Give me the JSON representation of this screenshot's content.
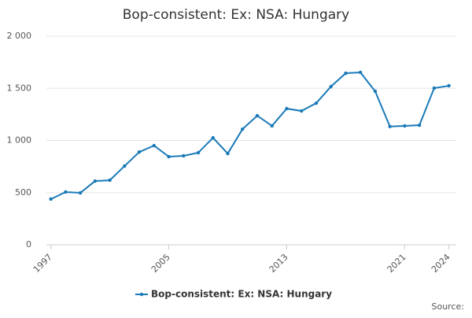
{
  "chart_data": {
    "type": "line",
    "title": "Bop-consistent: Ex: NSA: Hungary",
    "source": "Source:",
    "x": [
      1997,
      1998,
      1999,
      2000,
      2001,
      2002,
      2003,
      2004,
      2005,
      2006,
      2007,
      2008,
      2009,
      2010,
      2011,
      2012,
      2013,
      2014,
      2015,
      2016,
      2017,
      2018,
      2019,
      2020,
      2021,
      2022,
      2023,
      2024
    ],
    "series": [
      {
        "name": "Bop-consistent: Ex: NSA: Hungary",
        "color": "#1a7ab8",
        "values": [
          438,
          506,
          498,
          611,
          619,
          755,
          890,
          951,
          845,
          853,
          883,
          1026,
          875,
          1109,
          1238,
          1140,
          1306,
          1283,
          1358,
          1517,
          1645,
          1653,
          1472,
          1134,
          1140,
          1147,
          1502,
          1525
        ]
      }
    ],
    "xlim": [
      1996.7,
      2024.5
    ],
    "xticks": [
      1997,
      2005,
      2013,
      2021,
      2024
    ],
    "ylim": [
      0,
      2000
    ],
    "yticks": [
      0,
      500,
      {
        "value": 1000,
        "label": "1 000"
      },
      {
        "value": 1500,
        "label": "1 500"
      },
      {
        "value": 2000,
        "label": "2 000"
      }
    ],
    "grid": true
  }
}
